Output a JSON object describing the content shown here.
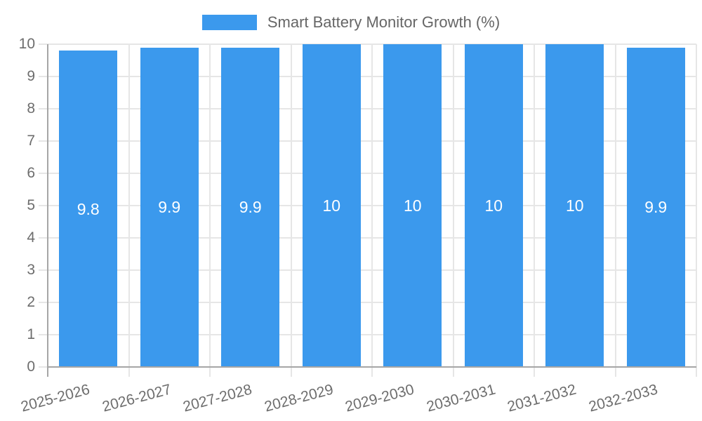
{
  "chart_data": {
    "type": "bar",
    "title": "Smart Battery Monitor Growth (%)",
    "categories": [
      "2025-2026",
      "2026-2027",
      "2027-2028",
      "2028-2029",
      "2029-2030",
      "2030-2031",
      "2031-2032",
      "2032-2033"
    ],
    "values": [
      9.8,
      9.9,
      9.9,
      10,
      10,
      10,
      10,
      9.9
    ],
    "value_labels": [
      "9.8",
      "9.9",
      "9.9",
      "10",
      "10",
      "10",
      "10",
      "9.9"
    ],
    "xlabel": "",
    "ylabel": "",
    "ylim": [
      0,
      10
    ],
    "ytick_step": 1,
    "ytick_labels": [
      "0",
      "1",
      "2",
      "3",
      "4",
      "5",
      "6",
      "7",
      "8",
      "9",
      "10"
    ],
    "grid": true,
    "legend_position": "top",
    "xtick_rotation_deg": -15,
    "colors": {
      "bar": "#3b99ed",
      "grid": "#e6e6e6",
      "axis": "#a6a6a6",
      "tick_text": "#6d6d6d",
      "legend_text": "#666666",
      "value_text": "#ffffff",
      "background": "#ffffff"
    }
  }
}
